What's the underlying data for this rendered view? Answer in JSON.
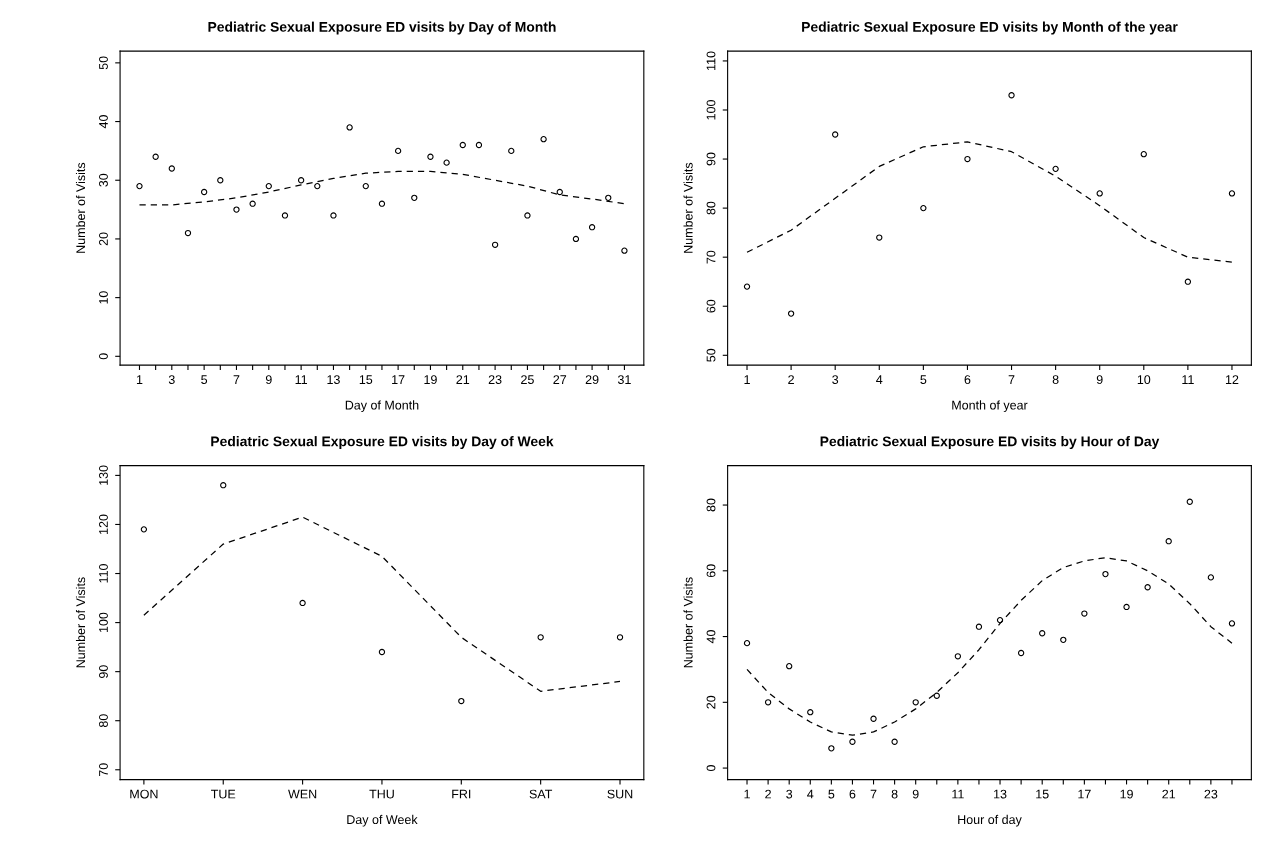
{
  "chart_data": [
    {
      "type": "scatter",
      "title": "Pediatric Sexual Exposure ED visits by Day of Month",
      "xlabel": "Day of Month",
      "ylabel": "Number of Visits",
      "x": [
        1,
        2,
        3,
        4,
        5,
        6,
        7,
        8,
        9,
        10,
        11,
        12,
        13,
        14,
        15,
        16,
        17,
        18,
        19,
        20,
        21,
        22,
        23,
        24,
        25,
        26,
        27,
        28,
        29,
        30,
        31
      ],
      "xlim": [
        -0.2,
        32.2
      ],
      "ylim": [
        -1.5,
        52
      ],
      "yticks": [
        0,
        10,
        20,
        30,
        40,
        50
      ],
      "xticks": [
        1,
        {
          "value": 2,
          "label": null
        },
        3,
        {
          "value": 4,
          "label": null
        },
        5,
        {
          "value": 6,
          "label": null
        },
        7,
        {
          "value": 8,
          "label": null
        },
        9,
        {
          "value": 10,
          "label": null
        },
        11,
        {
          "value": 12,
          "label": null
        },
        13,
        {
          "value": 14,
          "label": null
        },
        15,
        {
          "value": 16,
          "label": null
        },
        17,
        {
          "value": 18,
          "label": null
        },
        19,
        {
          "value": 20,
          "label": null
        },
        21,
        {
          "value": 22,
          "label": null
        },
        23,
        {
          "value": 24,
          "label": null
        },
        25,
        {
          "value": 26,
          "label": null
        },
        27,
        {
          "value": 28,
          "label": null
        },
        29,
        {
          "value": 30,
          "label": null
        },
        31
      ],
      "grid": false,
      "series": [
        {
          "marker": "circle",
          "color": "#000000",
          "values": [
            29,
            34,
            32,
            21,
            28,
            30,
            25,
            26,
            29,
            24,
            30,
            29,
            24,
            39,
            29,
            26,
            35,
            27,
            34,
            33,
            36,
            36,
            19,
            35,
            24,
            37,
            28,
            20,
            22,
            27,
            18
          ]
        },
        {
          "type": "line",
          "color": "#000000",
          "line_style": "dashed",
          "x": [
            1,
            3,
            5,
            7,
            9,
            11,
            13,
            15,
            17,
            19,
            21,
            23,
            25,
            27,
            29,
            31
          ],
          "values": [
            25.8,
            25.8,
            26.3,
            27,
            28,
            29.2,
            30.3,
            31.2,
            31.5,
            31.5,
            31,
            30,
            29,
            27.5,
            26.8,
            26
          ]
        }
      ]
    },
    {
      "type": "scatter",
      "title": "Pediatric Sexual Exposure ED visits by Month of the year",
      "xlabel": "Month of year",
      "ylabel": "Number of Visits",
      "x": [
        1,
        2,
        3,
        4,
        5,
        6,
        7,
        8,
        9,
        10,
        11,
        12
      ],
      "xlim": [
        0.56,
        12.44
      ],
      "ylim": [
        48,
        112
      ],
      "yticks": [
        50,
        60,
        70,
        80,
        90,
        100,
        110
      ],
      "xticks": [
        1,
        2,
        3,
        4,
        5,
        6,
        7,
        8,
        9,
        10,
        11,
        12
      ],
      "grid": false,
      "series": [
        {
          "marker": "circle",
          "color": "#000000",
          "values": [
            64,
            58.5,
            95,
            74,
            80,
            90,
            103,
            88,
            83,
            91,
            65,
            83
          ]
        },
        {
          "type": "line",
          "color": "#000000",
          "line_style": "dashed",
          "x": [
            1,
            2,
            3,
            4,
            5,
            6,
            7,
            8,
            9,
            10,
            11,
            12
          ],
          "values": [
            71,
            75.5,
            82,
            88.5,
            92.5,
            93.5,
            91.5,
            86.5,
            80.5,
            74,
            70,
            69
          ]
        }
      ]
    },
    {
      "type": "scatter",
      "title": "Pediatric Sexual Exposure ED visits by Day of Week",
      "xlabel": "Day of Week",
      "ylabel": "Number of Visits",
      "categories": [
        "MON",
        "TUE",
        "WEN",
        "THU",
        "FRI",
        "SAT",
        "SUN"
      ],
      "ylim": [
        68,
        132
      ],
      "yticks": [
        70,
        80,
        90,
        100,
        110,
        120,
        130
      ],
      "grid": false,
      "series": [
        {
          "marker": "circle",
          "color": "#000000",
          "values": [
            119,
            128,
            104,
            94,
            84,
            97,
            97
          ]
        },
        {
          "type": "line",
          "color": "#000000",
          "line_style": "dashed",
          "values": [
            101.5,
            116,
            121.5,
            113.5,
            97,
            86,
            88
          ]
        }
      ]
    },
    {
      "type": "scatter",
      "title": "Pediatric Sexual Exposure ED visits by Hour of Day",
      "xlabel": "Hour of day",
      "ylabel": "Number of Visits",
      "x": [
        1,
        2,
        3,
        4,
        5,
        6,
        7,
        8,
        9,
        10,
        11,
        12,
        13,
        14,
        15,
        16,
        17,
        18,
        19,
        20,
        21,
        22,
        23,
        24
      ],
      "xlim": [
        0.08,
        24.92
      ],
      "ylim": [
        -3.5,
        92
      ],
      "yticks": [
        0,
        20,
        40,
        60,
        80
      ],
      "xticks": [
        1,
        2,
        3,
        4,
        5,
        6,
        7,
        8,
        9,
        {
          "value": 10,
          "label": null
        },
        11,
        {
          "value": 12,
          "label": null
        },
        13,
        {
          "value": 14,
          "label": null
        },
        15,
        {
          "value": 16,
          "label": null
        },
        17,
        {
          "value": 18,
          "label": null
        },
        19,
        {
          "value": 20,
          "label": null
        },
        21,
        {
          "value": 22,
          "label": null
        },
        23,
        {
          "value": 24,
          "label": null
        }
      ],
      "grid": false,
      "series": [
        {
          "marker": "circle",
          "color": "#000000",
          "values": [
            38,
            20,
            31,
            17,
            6,
            8,
            15,
            8,
            20,
            22,
            34,
            43,
            45,
            35,
            41,
            39,
            47,
            59,
            49,
            55,
            69,
            81,
            58,
            44
          ]
        },
        {
          "type": "line",
          "color": "#000000",
          "line_style": "dashed",
          "x": [
            1,
            2,
            3,
            4,
            5,
            6,
            7,
            8,
            9,
            10,
            11,
            12,
            13,
            14,
            15,
            16,
            17,
            18,
            19,
            20,
            21,
            22,
            23,
            24
          ],
          "values": [
            30,
            23,
            18,
            14,
            11,
            10,
            11,
            14,
            18,
            23,
            29,
            36,
            44,
            51,
            57,
            61,
            63,
            64,
            63,
            60,
            56,
            50,
            43,
            38
          ]
        }
      ]
    }
  ]
}
